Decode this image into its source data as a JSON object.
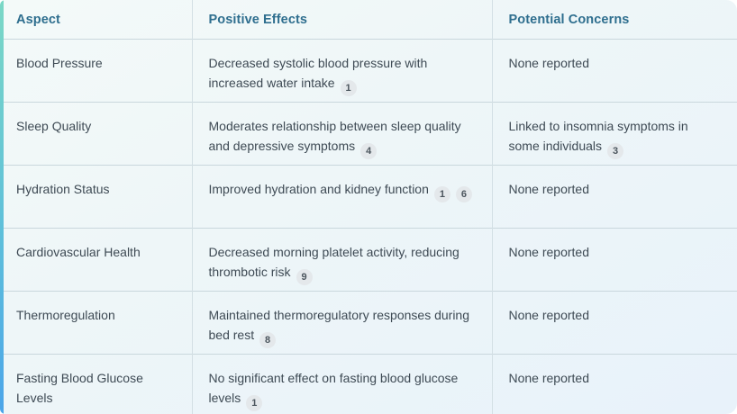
{
  "table": {
    "columns": [
      {
        "label": "Aspect"
      },
      {
        "label": "Positive Effects"
      },
      {
        "label": "Potential Concerns"
      }
    ],
    "rows": [
      {
        "aspect": "Blood Pressure",
        "positive": {
          "text": "Decreased systolic blood pressure with increased water intake",
          "refs": [
            "1"
          ]
        },
        "concerns": {
          "text": "None reported",
          "refs": []
        }
      },
      {
        "aspect": "Sleep Quality",
        "positive": {
          "text": "Moderates relationship between sleep quality and depressive symptoms",
          "refs": [
            "4"
          ]
        },
        "concerns": {
          "text": "Linked to insomnia symptoms in some individuals",
          "refs": [
            "3"
          ]
        }
      },
      {
        "aspect": "Hydration Status",
        "positive": {
          "text": "Improved hydration and kidney function",
          "refs": [
            "1",
            "6"
          ]
        },
        "concerns": {
          "text": "None reported",
          "refs": []
        }
      },
      {
        "aspect": "Cardiovascular Health",
        "positive": {
          "text": "Decreased morning platelet activity, reducing thrombotic risk",
          "refs": [
            "9"
          ]
        },
        "concerns": {
          "text": "None reported",
          "refs": []
        }
      },
      {
        "aspect": "Thermoregulation",
        "positive": {
          "text": "Maintained thermoregulatory responses during bed rest",
          "refs": [
            "8"
          ]
        },
        "concerns": {
          "text": "None reported",
          "refs": []
        }
      },
      {
        "aspect": "Fasting Blood Glucose Levels",
        "positive": {
          "text": "No significant effect on fasting blood glucose levels",
          "refs": [
            "1"
          ]
        },
        "concerns": {
          "text": "None reported",
          "refs": []
        }
      }
    ],
    "colors": {
      "accent_gradient_top": "#7BD8C6",
      "accent_gradient_bottom": "#4BA5E9",
      "header_text": "#2E6E8E",
      "body_text": "#3E4A54",
      "badge_bg": "#E4E8EB",
      "badge_text": "#4C565E"
    }
  }
}
